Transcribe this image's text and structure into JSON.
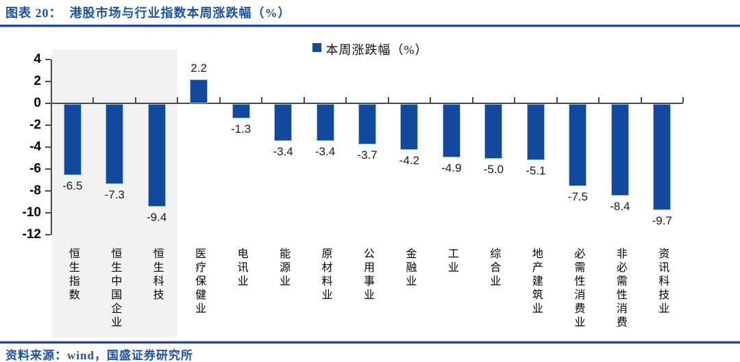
{
  "header": {
    "title": "图表 20：  港股市场与行业指数本周涨跌幅（%）"
  },
  "footer": {
    "source": "资料来源：wind，国盛证券研究所"
  },
  "colors": {
    "bar": "#13489F",
    "bar_border": "#9DC3E6",
    "band": "#F2F2F2",
    "axis": "#4a4a4a",
    "title_blue": "#1C52A2",
    "rule_dark": "#1E45A0",
    "rule_light": "#A9BFE4",
    "value_label": "#1A1A1A"
  },
  "chart_data": {
    "type": "bar",
    "legend_label": "本周涨跌幅（%）",
    "legend_position": "top-center",
    "categories": [
      "恒生指数",
      "恒生中国企业",
      "恒生科技",
      "医疗保健业",
      "电讯业",
      "能源业",
      "原材料业",
      "公用事业",
      "金融业",
      "工业",
      "综合业",
      "地产建筑业",
      "必需性消费业",
      "非必需性消费",
      "资讯科技业"
    ],
    "values": [
      -6.5,
      -7.3,
      -9.4,
      2.2,
      -1.3,
      -3.4,
      -3.4,
      -3.7,
      -4.2,
      -4.9,
      -5.0,
      -5.1,
      -7.5,
      -8.4,
      -9.7
    ],
    "value_labels": [
      "-6.5",
      "-7.3",
      "-9.4",
      "2.2",
      "-1.3",
      "-3.4",
      "-3.4",
      "-3.7",
      "-4.2",
      "-4.9",
      "-5.0",
      "-5.1",
      "-7.5",
      "-8.4",
      "-9.7"
    ],
    "yticks": [
      4,
      2,
      0,
      -2,
      -4,
      -6,
      -8,
      -10,
      -12
    ],
    "ylim": [
      -12,
      4
    ],
    "grid": false,
    "highlight_band": {
      "start_index": 0,
      "end_index": 3
    }
  }
}
